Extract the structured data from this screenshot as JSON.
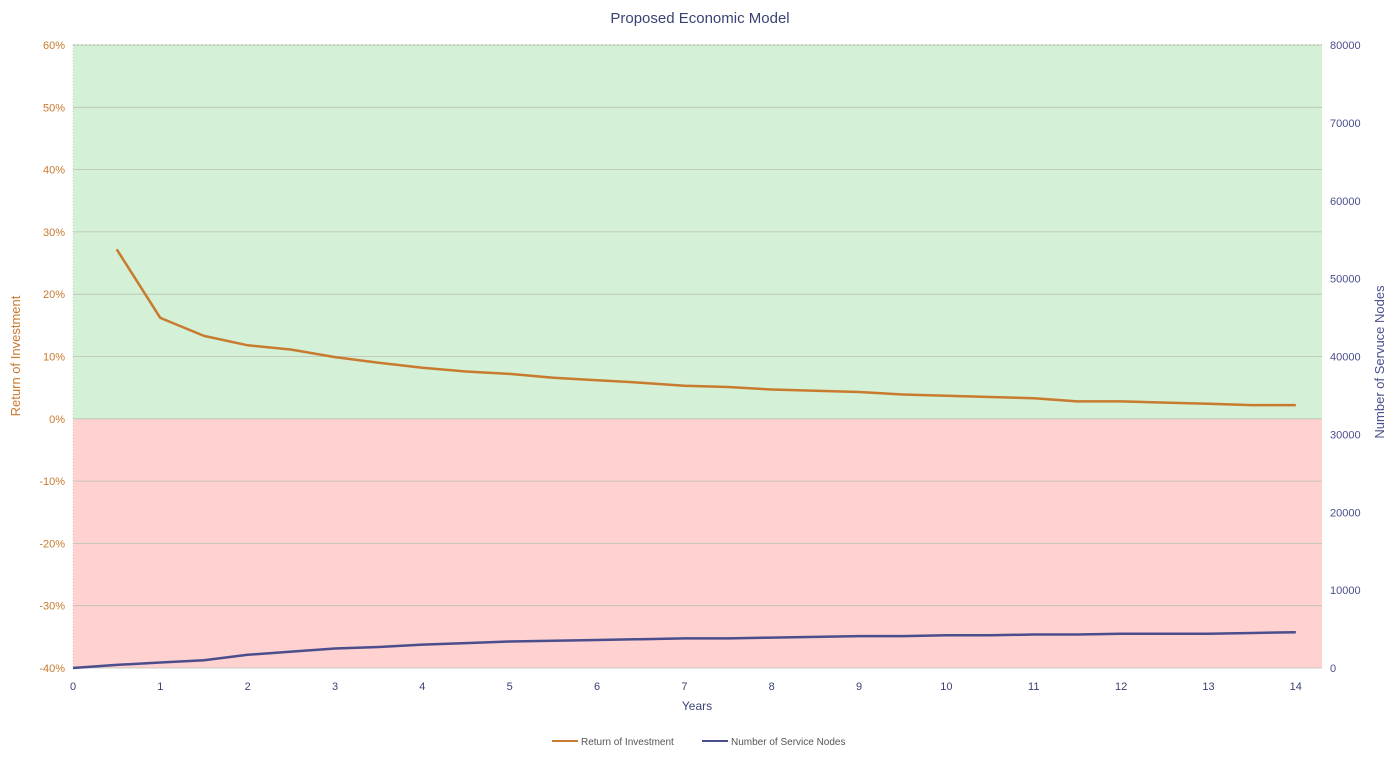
{
  "chart_data": {
    "type": "line",
    "title": "Proposed Economic Model",
    "xlabel": "Years",
    "ylabel_left": "Return of Investment",
    "ylabel_right": "Number of Servuce Nodes",
    "x_ticks": [
      "0",
      "1",
      "2",
      "3",
      "4",
      "5",
      "6",
      "7",
      "8",
      "9",
      "10",
      "11",
      "12",
      "13",
      "14"
    ],
    "x_range": [
      0,
      14.3
    ],
    "y_left_ticks": [
      "-40%",
      "-30%",
      "-20%",
      "-10%",
      "0%",
      "10%",
      "20%",
      "30%",
      "40%",
      "50%",
      "60%"
    ],
    "y_left_range": [
      -40,
      60
    ],
    "y_right_ticks": [
      "0",
      "10000",
      "20000",
      "30000",
      "40000",
      "50000",
      "60000",
      "70000",
      "80000"
    ],
    "y_right_range": [
      0,
      80000
    ],
    "grid": true,
    "background_bands": [
      {
        "from": 0,
        "to": 60,
        "color": "#d4f0d7"
      },
      {
        "from": -40,
        "to": 0,
        "color": "#ffd1d1"
      }
    ],
    "legend_position": "bottom",
    "series": [
      {
        "name": "Return of Investment",
        "axis": "left",
        "color": "#c87a2e",
        "x": [
          0.5,
          1,
          1.5,
          2,
          2.5,
          3,
          3.5,
          4,
          4.5,
          5,
          5.5,
          6,
          6.5,
          7,
          7.5,
          8,
          8.5,
          9,
          9.5,
          10,
          10.5,
          11,
          11.5,
          12,
          12.5,
          13,
          13.5,
          14
        ],
        "values": [
          27.2,
          16.2,
          13.3,
          11.8,
          11.1,
          9.9,
          9.0,
          8.2,
          7.6,
          7.2,
          6.6,
          6.2,
          5.8,
          5.3,
          5.1,
          4.7,
          4.5,
          4.3,
          3.9,
          3.7,
          3.5,
          3.3,
          2.8,
          2.8,
          2.6,
          2.4,
          2.2,
          2.2
        ]
      },
      {
        "name": "Number of Service Nodes",
        "axis": "right",
        "color": "#4a4e8c",
        "x": [
          0,
          0.5,
          1,
          1.5,
          2,
          2.5,
          3,
          3.5,
          4,
          4.5,
          5,
          5.5,
          6,
          6.5,
          7,
          7.5,
          8,
          8.5,
          9,
          9.5,
          10,
          10.5,
          11,
          11.5,
          12,
          12.5,
          13,
          13.5,
          14
        ],
        "values": [
          0,
          400,
          700,
          1000,
          1700,
          2100,
          2500,
          2700,
          3000,
          3200,
          3400,
          3500,
          3600,
          3700,
          3800,
          3800,
          3900,
          4000,
          4100,
          4100,
          4200,
          4200,
          4300,
          4300,
          4400,
          4400,
          4400,
          4500,
          4600
        ]
      }
    ]
  }
}
